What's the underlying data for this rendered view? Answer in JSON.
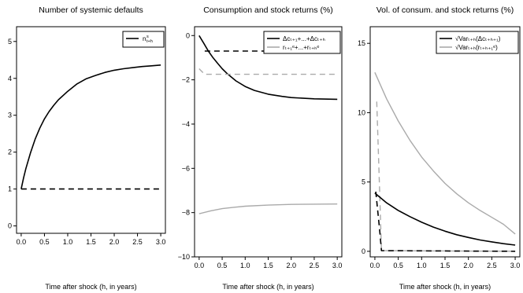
{
  "chart_data": [
    {
      "type": "line",
      "title": "Number of systemic defaults",
      "xlabel": "Time after shock (h, in years)",
      "ylabel": "",
      "xlim": [
        -0.1,
        3.1
      ],
      "ylim": [
        -0.2,
        5.4
      ],
      "xticks": [
        0.0,
        0.5,
        1.0,
        1.5,
        2.0,
        2.5,
        3.0
      ],
      "xtick_labels": [
        "0.0",
        "0.5",
        "1.0",
        "1.5",
        "2.0",
        "2.5",
        "3.0"
      ],
      "yticks": [
        0,
        1,
        2,
        3,
        4,
        5
      ],
      "ytick_labels": [
        "0",
        "1",
        "2",
        "3",
        "4",
        "5"
      ],
      "legend_position": "top-right",
      "legend": [
        {
          "main": "n",
          "sup": "s",
          "sub": "t+h",
          "color": "#000000",
          "dash": "solid"
        }
      ],
      "series": [
        {
          "color": "#000000",
          "dash": "solid",
          "width": 1.6,
          "x": [
            0,
            0.05,
            0.1,
            0.2,
            0.3,
            0.4,
            0.5,
            0.6,
            0.7,
            0.8,
            1.0,
            1.2,
            1.4,
            1.6,
            1.8,
            2.0,
            2.2,
            2.4,
            2.6,
            2.8,
            3.0
          ],
          "values": [
            1.0,
            1.3,
            1.55,
            1.98,
            2.35,
            2.65,
            2.9,
            3.1,
            3.27,
            3.42,
            3.65,
            3.85,
            3.99,
            4.08,
            4.16,
            4.22,
            4.26,
            4.29,
            4.32,
            4.34,
            4.36
          ]
        },
        {
          "color": "#000000",
          "dash": "dashed",
          "width": 1.6,
          "x": [
            0,
            3.0
          ],
          "values": [
            1.0,
            1.0
          ]
        }
      ]
    },
    {
      "type": "line",
      "title": "Consumption and stock returns (%)",
      "xlabel": "Time after shock (h, in years)",
      "ylabel": "",
      "xlim": [
        -0.1,
        3.1
      ],
      "ylim": [
        -10.0,
        0.4
      ],
      "xticks": [
        0.0,
        0.5,
        1.0,
        1.5,
        2.0,
        2.5,
        3.0
      ],
      "xtick_labels": [
        "0.0",
        "0.5",
        "1.0",
        "1.5",
        "2.0",
        "2.5",
        "3.0"
      ],
      "yticks": [
        0,
        -2,
        -4,
        -6,
        -8,
        -10
      ],
      "ytick_labels": [
        "0",
        "−2",
        "−4",
        "−6",
        "−8",
        "−10"
      ],
      "legend_position": "top-right",
      "legend": [
        {
          "text": "Δcₜ₊₁+...+Δcₜ₊ₕ",
          "color": "#000000",
          "dash": "solid"
        },
        {
          "text": "rₜ₊₁ᵉ+...+rₜ₊ₕᵉ",
          "color": "#aaaaaa",
          "dash": "solid"
        }
      ],
      "series": [
        {
          "color": "#000000",
          "dash": "solid",
          "width": 1.6,
          "x": [
            0,
            0.1,
            0.2,
            0.3,
            0.4,
            0.5,
            0.6,
            0.8,
            1.0,
            1.2,
            1.5,
            1.8,
            2.0,
            2.5,
            3.0
          ],
          "values": [
            0.0,
            -0.35,
            -0.7,
            -1.0,
            -1.25,
            -1.5,
            -1.7,
            -2.05,
            -2.3,
            -2.48,
            -2.65,
            -2.75,
            -2.8,
            -2.86,
            -2.88
          ]
        },
        {
          "color": "#000000",
          "dash": "dashed",
          "width": 1.6,
          "x": [
            0.12,
            3.0
          ],
          "values": [
            -0.7,
            -0.7
          ]
        },
        {
          "color": "#aaaaaa",
          "dash": "dashed",
          "width": 1.4,
          "x": [
            0.0,
            0.12,
            3.0
          ],
          "values": [
            -1.5,
            -1.75,
            -1.75
          ]
        },
        {
          "color": "#aaaaaa",
          "dash": "solid",
          "width": 1.4,
          "x": [
            0,
            0.25,
            0.5,
            0.75,
            1.0,
            1.5,
            2.0,
            2.5,
            3.0
          ],
          "values": [
            -8.05,
            -7.92,
            -7.82,
            -7.76,
            -7.71,
            -7.66,
            -7.63,
            -7.62,
            -7.61
          ]
        }
      ]
    },
    {
      "type": "line",
      "title": "Vol. of consum. and stock returns (%)",
      "xlabel": "Time after shock (h, in years)",
      "ylabel": "",
      "xlim": [
        -0.1,
        3.1
      ],
      "ylim": [
        -0.4,
        16.2
      ],
      "xticks": [
        0.0,
        0.5,
        1.0,
        1.5,
        2.0,
        2.5,
        3.0
      ],
      "xtick_labels": [
        "0.0",
        "0.5",
        "1.0",
        "1.5",
        "2.0",
        "2.5",
        "3.0"
      ],
      "yticks": [
        0,
        5,
        10,
        15
      ],
      "ytick_labels": [
        "0",
        "5",
        "10",
        "15"
      ],
      "legend_position": "top-right",
      "legend": [
        {
          "text": "√Varₜ₊ₕ(Δcₜ₊ₕ₊₁)",
          "color": "#000000",
          "dash": "solid"
        },
        {
          "text": "√Varₜ₊ₕ(rₜ₊ₕ₊₁ᵉ)",
          "color": "#aaaaaa",
          "dash": "solid"
        }
      ],
      "series": [
        {
          "color": "#aaaaaa",
          "dash": "solid",
          "width": 1.4,
          "x": [
            0,
            0.25,
            0.5,
            0.75,
            1.0,
            1.25,
            1.5,
            1.75,
            2.0,
            2.25,
            2.5,
            2.75,
            3.0
          ],
          "values": [
            12.9,
            11.0,
            9.4,
            8.0,
            6.8,
            5.8,
            4.9,
            4.15,
            3.5,
            2.95,
            2.45,
            1.95,
            1.25
          ]
        },
        {
          "color": "#aaaaaa",
          "dash": "dashed",
          "width": 1.4,
          "x": [
            0.04,
            0.1,
            0.14,
            3.0
          ],
          "values": [
            10.8,
            4.5,
            0.05,
            0.0
          ]
        },
        {
          "color": "#000000",
          "dash": "solid",
          "width": 1.6,
          "x": [
            0,
            0.25,
            0.5,
            0.75,
            1.0,
            1.25,
            1.5,
            1.75,
            2.0,
            2.25,
            2.5,
            2.75,
            3.0
          ],
          "values": [
            4.2,
            3.5,
            2.95,
            2.5,
            2.1,
            1.75,
            1.45,
            1.2,
            1.0,
            0.82,
            0.68,
            0.55,
            0.45
          ]
        },
        {
          "color": "#000000",
          "dash": "dashed",
          "width": 1.6,
          "x": [
            0.02,
            0.1,
            0.14,
            3.0
          ],
          "values": [
            4.3,
            1.6,
            0.05,
            0.0
          ]
        }
      ]
    }
  ]
}
